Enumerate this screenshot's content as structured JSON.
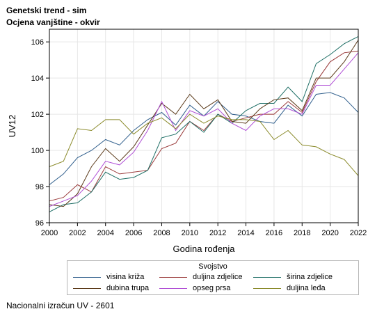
{
  "titles": {
    "line1": "Genetski trend - sim",
    "line2": "Ocjena vanjštine - okvir"
  },
  "footnote": "Nacionalni izračun UV - 2601",
  "colors": {
    "visina": "#2f5e8c",
    "duljina_zdjelice": "#9a3a3a",
    "sirina_zdjelice": "#1f6f66",
    "dubina_trupa": "#5b3a1a",
    "opseg_prsa": "#b04fd6",
    "duljina_leda": "#8a8a2a"
  },
  "chart_data": {
    "type": "line",
    "xlabel": "Godina rođenja",
    "ylabel": "UV12",
    "xlim": [
      2000,
      2022
    ],
    "ylim": [
      96,
      106.7
    ],
    "xticks": [
      2000,
      2002,
      2004,
      2006,
      2008,
      2010,
      2012,
      2014,
      2016,
      2018,
      2020,
      2022
    ],
    "yticks": [
      96,
      98,
      100,
      102,
      104,
      106
    ],
    "grid": true,
    "legend": {
      "title": "Svojstvo",
      "placement": "bottom"
    },
    "x": [
      2000,
      2001,
      2002,
      2003,
      2004,
      2005,
      2006,
      2007,
      2008,
      2009,
      2010,
      2011,
      2012,
      2013,
      2014,
      2015,
      2016,
      2017,
      2018,
      2019,
      2020,
      2021,
      2022
    ],
    "series": [
      {
        "name": "visina križa",
        "color_key": "visina",
        "values": [
          98.1,
          98.7,
          99.6,
          100.0,
          100.6,
          100.3,
          101.1,
          101.7,
          102.1,
          101.4,
          102.5,
          101.9,
          102.7,
          102.0,
          101.9,
          101.6,
          101.5,
          102.5,
          101.9,
          103.1,
          103.2,
          102.9,
          102.1
        ]
      },
      {
        "name": "duljina zdjelice",
        "color_key": "duljina_zdjelice",
        "values": [
          97.2,
          97.4,
          98.1,
          97.7,
          99.1,
          98.7,
          98.8,
          98.9,
          100.1,
          100.4,
          101.6,
          101.1,
          102.0,
          101.6,
          101.8,
          102.0,
          102.0,
          102.7,
          102.1,
          103.8,
          104.9,
          105.4,
          105.5
        ]
      },
      {
        "name": "širina zdjelice",
        "color_key": "sirina_zdjelice",
        "values": [
          96.6,
          97.0,
          97.1,
          97.7,
          98.8,
          98.4,
          98.5,
          98.9,
          100.7,
          100.9,
          101.6,
          101.0,
          102.0,
          101.5,
          102.2,
          102.6,
          102.6,
          103.5,
          102.7,
          104.8,
          105.3,
          105.9,
          106.3
        ]
      },
      {
        "name": "dubina trupa",
        "color_key": "dubina_trupa",
        "values": [
          97.0,
          96.9,
          97.6,
          99.1,
          100.1,
          99.4,
          100.2,
          101.4,
          102.6,
          102.0,
          103.1,
          102.3,
          102.8,
          101.6,
          101.5,
          102.3,
          102.8,
          102.9,
          102.2,
          104.0,
          104.0,
          104.9,
          106.1
        ]
      },
      {
        "name": "opseg prsa",
        "color_key": "opseg_prsa",
        "values": [
          96.9,
          97.2,
          97.5,
          98.3,
          99.4,
          99.2,
          99.9,
          101.1,
          102.7,
          101.1,
          102.2,
          101.9,
          102.3,
          101.5,
          101.1,
          101.9,
          102.3,
          102.3,
          102.0,
          103.6,
          103.6,
          104.5,
          105.4
        ]
      },
      {
        "name": "duljina leđa",
        "color_key": "duljina_leda",
        "values": [
          99.1,
          99.4,
          101.2,
          101.1,
          101.7,
          101.7,
          100.9,
          101.5,
          101.8,
          101.2,
          102.0,
          101.5,
          101.9,
          101.7,
          101.7,
          101.6,
          100.6,
          101.1,
          100.3,
          100.2,
          99.8,
          99.5,
          98.6
        ]
      }
    ]
  }
}
